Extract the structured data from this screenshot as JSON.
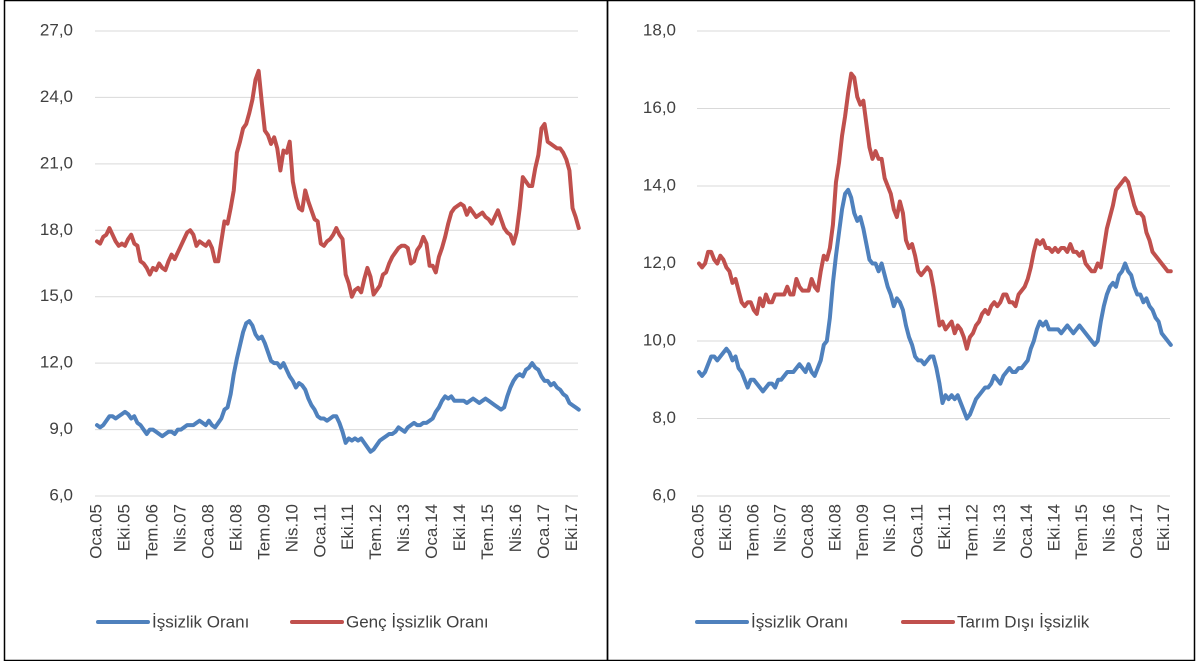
{
  "chart_data": [
    {
      "type": "line",
      "categories": [
        "Oca.05",
        null,
        null,
        null,
        null,
        null,
        null,
        null,
        null,
        "Eki.05",
        null,
        null,
        null,
        null,
        null,
        null,
        null,
        null,
        "Tem.06",
        null,
        null,
        null,
        null,
        null,
        null,
        null,
        null,
        "Nis.07",
        null,
        null,
        null,
        null,
        null,
        null,
        null,
        null,
        "Oca.08",
        null,
        null,
        null,
        null,
        null,
        null,
        null,
        null,
        "Eki.08",
        null,
        null,
        null,
        null,
        null,
        null,
        null,
        null,
        "Tem.09",
        null,
        null,
        null,
        null,
        null,
        null,
        null,
        null,
        "Nis.10",
        null,
        null,
        null,
        null,
        null,
        null,
        null,
        null,
        "Oca.11",
        null,
        null,
        null,
        null,
        null,
        null,
        null,
        null,
        "Eki.11",
        null,
        null,
        null,
        null,
        null,
        null,
        null,
        null,
        "Tem.12",
        null,
        null,
        null,
        null,
        null,
        null,
        null,
        null,
        "Nis.13",
        null,
        null,
        null,
        null,
        null,
        null,
        null,
        null,
        "Oca.14",
        null,
        null,
        null,
        null,
        null,
        null,
        null,
        null,
        "Eki.14",
        null,
        null,
        null,
        null,
        null,
        null,
        null,
        null,
        "Tem.15",
        null,
        null,
        null,
        null,
        null,
        null,
        null,
        null,
        "Nis.16",
        null,
        null,
        null,
        null,
        null,
        null,
        null,
        null,
        "Oca.17",
        null,
        null,
        null,
        null,
        null,
        null,
        null,
        null,
        "Eki.17",
        null,
        null
      ],
      "series": [
        {
          "name": "İşsizlik Oranı",
          "color": "#4f81bd",
          "values": [
            9.2,
            9.1,
            9.2,
            9.4,
            9.6,
            9.6,
            9.5,
            9.6,
            9.7,
            9.8,
            9.7,
            9.5,
            9.6,
            9.3,
            9.2,
            9.0,
            8.8,
            9.0,
            9.0,
            8.9,
            8.8,
            8.7,
            8.8,
            8.9,
            8.9,
            8.8,
            9.0,
            9.0,
            9.1,
            9.2,
            9.2,
            9.2,
            9.3,
            9.4,
            9.3,
            9.2,
            9.4,
            9.2,
            9.1,
            9.3,
            9.5,
            9.9,
            10.0,
            10.6,
            11.5,
            12.2,
            12.8,
            13.4,
            13.8,
            13.9,
            13.7,
            13.3,
            13.1,
            13.2,
            12.9,
            12.5,
            12.1,
            12.0,
            12.0,
            11.8,
            12.0,
            11.7,
            11.4,
            11.2,
            10.9,
            11.1,
            11.0,
            10.8,
            10.4,
            10.1,
            9.9,
            9.6,
            9.5,
            9.5,
            9.4,
            9.5,
            9.6,
            9.6,
            9.3,
            8.9,
            8.4,
            8.6,
            8.5,
            8.6,
            8.5,
            8.6,
            8.4,
            8.2,
            8.0,
            8.1,
            8.3,
            8.5,
            8.6,
            8.7,
            8.8,
            8.8,
            8.9,
            9.1,
            9.0,
            8.9,
            9.1,
            9.2,
            9.3,
            9.2,
            9.2,
            9.3,
            9.3,
            9.4,
            9.5,
            9.8,
            10.0,
            10.3,
            10.5,
            10.4,
            10.5,
            10.3,
            10.3,
            10.3,
            10.3,
            10.2,
            10.3,
            10.4,
            10.3,
            10.2,
            10.3,
            10.4,
            10.3,
            10.2,
            10.1,
            10.0,
            9.9,
            10.0,
            10.5,
            10.9,
            11.2,
            11.4,
            11.5,
            11.4,
            11.7,
            11.8,
            12.0,
            11.8,
            11.7,
            11.4,
            11.2,
            11.2,
            11.0,
            11.1,
            10.9,
            10.8,
            10.6,
            10.5,
            10.2,
            10.1,
            10.0,
            9.9
          ]
        },
        {
          "name": "Genç İşsizlik Oranı",
          "color": "#c0504d",
          "values": [
            17.5,
            17.4,
            17.7,
            17.8,
            18.1,
            17.8,
            17.5,
            17.3,
            17.4,
            17.3,
            17.6,
            17.8,
            17.4,
            17.3,
            16.6,
            16.5,
            16.3,
            16.0,
            16.3,
            16.2,
            16.5,
            16.3,
            16.2,
            16.6,
            16.9,
            16.7,
            17.0,
            17.3,
            17.6,
            17.9,
            18.0,
            17.8,
            17.3,
            17.5,
            17.4,
            17.3,
            17.5,
            17.2,
            16.6,
            16.6,
            17.5,
            18.4,
            18.3,
            19.0,
            19.8,
            21.5,
            22.0,
            22.6,
            22.8,
            23.3,
            23.9,
            24.8,
            25.2,
            23.8,
            22.5,
            22.3,
            21.9,
            22.2,
            21.7,
            20.7,
            21.6,
            21.5,
            22.0,
            20.2,
            19.5,
            19.0,
            18.9,
            19.8,
            19.3,
            18.9,
            18.5,
            18.4,
            17.4,
            17.3,
            17.5,
            17.6,
            17.8,
            18.1,
            17.8,
            17.6,
            16.0,
            15.6,
            15.0,
            15.3,
            15.4,
            15.2,
            15.8,
            16.3,
            15.9,
            15.1,
            15.3,
            15.5,
            16.0,
            16.1,
            16.5,
            16.8,
            17.0,
            17.2,
            17.3,
            17.3,
            17.2,
            16.5,
            16.6,
            17.1,
            17.3,
            17.7,
            17.4,
            16.4,
            16.4,
            16.1,
            16.8,
            17.2,
            17.7,
            18.3,
            18.8,
            19.0,
            19.1,
            19.2,
            19.1,
            18.7,
            19.0,
            18.8,
            18.6,
            18.7,
            18.8,
            18.6,
            18.5,
            18.3,
            18.6,
            18.9,
            18.5,
            18.1,
            17.9,
            17.8,
            17.4,
            17.9,
            19.0,
            20.4,
            20.2,
            20.0,
            20.0,
            20.8,
            21.4,
            22.6,
            22.8,
            22.0,
            21.9,
            21.8,
            21.7,
            21.7,
            21.5,
            21.2,
            20.7,
            19.0,
            18.6,
            18.1
          ]
        }
      ],
      "ylim": [
        6,
        27
      ],
      "yticks": [
        {
          "value": 6,
          "label": "6,0"
        },
        {
          "value": 9,
          "label": "9,0"
        },
        {
          "value": 12,
          "label": "12,0"
        },
        {
          "value": 15,
          "label": "15,0"
        },
        {
          "value": 18,
          "label": "18,0"
        },
        {
          "value": 21,
          "label": "21,0"
        },
        {
          "value": 24,
          "label": "24,0"
        },
        {
          "value": 27,
          "label": "27,0"
        }
      ],
      "grid": true,
      "legend": "bottom"
    },
    {
      "type": "line",
      "categories": [
        "Oca.05",
        null,
        null,
        null,
        null,
        null,
        null,
        null,
        null,
        "Eki.05",
        null,
        null,
        null,
        null,
        null,
        null,
        null,
        null,
        "Tem.06",
        null,
        null,
        null,
        null,
        null,
        null,
        null,
        null,
        "Nis.07",
        null,
        null,
        null,
        null,
        null,
        null,
        null,
        null,
        "Oca.08",
        null,
        null,
        null,
        null,
        null,
        null,
        null,
        null,
        "Eki.08",
        null,
        null,
        null,
        null,
        null,
        null,
        null,
        null,
        "Tem.09",
        null,
        null,
        null,
        null,
        null,
        null,
        null,
        null,
        "Nis.10",
        null,
        null,
        null,
        null,
        null,
        null,
        null,
        null,
        "Oca.11",
        null,
        null,
        null,
        null,
        null,
        null,
        null,
        null,
        "Eki.11",
        null,
        null,
        null,
        null,
        null,
        null,
        null,
        null,
        "Tem.12",
        null,
        null,
        null,
        null,
        null,
        null,
        null,
        null,
        "Nis.13",
        null,
        null,
        null,
        null,
        null,
        null,
        null,
        null,
        "Oca.14",
        null,
        null,
        null,
        null,
        null,
        null,
        null,
        null,
        "Eki.14",
        null,
        null,
        null,
        null,
        null,
        null,
        null,
        null,
        "Tem.15",
        null,
        null,
        null,
        null,
        null,
        null,
        null,
        null,
        "Nis.16",
        null,
        null,
        null,
        null,
        null,
        null,
        null,
        null,
        "Oca.17",
        null,
        null,
        null,
        null,
        null,
        null,
        null,
        null,
        "Eki.17",
        null,
        null
      ],
      "series": [
        {
          "name": "İşsizlik Oranı",
          "color": "#4f81bd",
          "values": [
            9.2,
            9.1,
            9.2,
            9.4,
            9.6,
            9.6,
            9.5,
            9.6,
            9.7,
            9.8,
            9.7,
            9.5,
            9.6,
            9.3,
            9.2,
            9.0,
            8.8,
            9.0,
            9.0,
            8.9,
            8.8,
            8.7,
            8.8,
            8.9,
            8.9,
            8.8,
            9.0,
            9.0,
            9.1,
            9.2,
            9.2,
            9.2,
            9.3,
            9.4,
            9.3,
            9.2,
            9.4,
            9.2,
            9.1,
            9.3,
            9.5,
            9.9,
            10.0,
            10.6,
            11.5,
            12.2,
            12.8,
            13.4,
            13.8,
            13.9,
            13.7,
            13.3,
            13.1,
            13.2,
            12.9,
            12.5,
            12.1,
            12.0,
            12.0,
            11.8,
            12.0,
            11.7,
            11.4,
            11.2,
            10.9,
            11.1,
            11.0,
            10.8,
            10.4,
            10.1,
            9.9,
            9.6,
            9.5,
            9.5,
            9.4,
            9.5,
            9.6,
            9.6,
            9.3,
            8.9,
            8.4,
            8.6,
            8.5,
            8.6,
            8.5,
            8.6,
            8.4,
            8.2,
            8.0,
            8.1,
            8.3,
            8.5,
            8.6,
            8.7,
            8.8,
            8.8,
            8.9,
            9.1,
            9.0,
            8.9,
            9.1,
            9.2,
            9.3,
            9.2,
            9.2,
            9.3,
            9.3,
            9.4,
            9.5,
            9.8,
            10.0,
            10.3,
            10.5,
            10.4,
            10.5,
            10.3,
            10.3,
            10.3,
            10.3,
            10.2,
            10.3,
            10.4,
            10.3,
            10.2,
            10.3,
            10.4,
            10.3,
            10.2,
            10.1,
            10.0,
            9.9,
            10.0,
            10.5,
            10.9,
            11.2,
            11.4,
            11.5,
            11.4,
            11.7,
            11.8,
            12.0,
            11.8,
            11.7,
            11.4,
            11.2,
            11.2,
            11.0,
            11.1,
            10.9,
            10.8,
            10.6,
            10.5,
            10.2,
            10.1,
            10.0,
            9.9
          ]
        },
        {
          "name": "Tarım Dışı İşsizlik",
          "color": "#c0504d",
          "values": [
            12.0,
            11.9,
            12.0,
            12.3,
            12.3,
            12.1,
            12.0,
            12.2,
            12.1,
            11.9,
            11.8,
            11.5,
            11.6,
            11.3,
            11.0,
            10.9,
            11.0,
            11.0,
            10.8,
            10.7,
            11.1,
            10.9,
            11.2,
            11.0,
            11.0,
            11.2,
            11.2,
            11.2,
            11.2,
            11.4,
            11.2,
            11.2,
            11.6,
            11.4,
            11.3,
            11.3,
            11.3,
            11.6,
            11.4,
            11.3,
            11.8,
            12.2,
            12.1,
            12.4,
            13.0,
            14.1,
            14.6,
            15.3,
            15.8,
            16.4,
            16.9,
            16.8,
            16.3,
            16.1,
            16.2,
            15.6,
            15.0,
            14.7,
            14.9,
            14.7,
            14.7,
            14.2,
            14.0,
            13.8,
            13.4,
            13.2,
            13.6,
            13.3,
            12.6,
            12.4,
            12.5,
            12.2,
            11.8,
            11.7,
            11.8,
            11.9,
            11.8,
            11.4,
            10.9,
            10.4,
            10.5,
            10.3,
            10.4,
            10.5,
            10.2,
            10.4,
            10.3,
            10.1,
            9.8,
            10.1,
            10.2,
            10.4,
            10.5,
            10.7,
            10.8,
            10.7,
            10.9,
            11.0,
            10.9,
            11.0,
            11.2,
            11.2,
            11.0,
            11.0,
            10.9,
            11.2,
            11.3,
            11.4,
            11.6,
            11.9,
            12.3,
            12.6,
            12.5,
            12.6,
            12.4,
            12.4,
            12.3,
            12.4,
            12.3,
            12.4,
            12.4,
            12.3,
            12.5,
            12.3,
            12.3,
            12.2,
            12.3,
            12.0,
            11.9,
            11.8,
            11.8,
            12.0,
            11.9,
            12.4,
            12.9,
            13.2,
            13.5,
            13.9,
            14.0,
            14.1,
            14.2,
            14.1,
            13.8,
            13.5,
            13.3,
            13.3,
            13.2,
            12.8,
            12.6,
            12.3,
            12.2,
            12.1,
            12.0,
            11.9,
            11.8,
            11.8
          ]
        }
      ],
      "ylim": [
        6,
        18
      ],
      "yticks": [
        {
          "value": 6,
          "label": "6,0"
        },
        {
          "value": 8,
          "label": "8,0"
        },
        {
          "value": 10,
          "label": "10,0"
        },
        {
          "value": 12,
          "label": "12,0"
        },
        {
          "value": 14,
          "label": "14,0"
        },
        {
          "value": 16,
          "label": "16,0"
        },
        {
          "value": 18,
          "label": "18,0"
        }
      ],
      "grid": true,
      "legend": "bottom"
    }
  ]
}
